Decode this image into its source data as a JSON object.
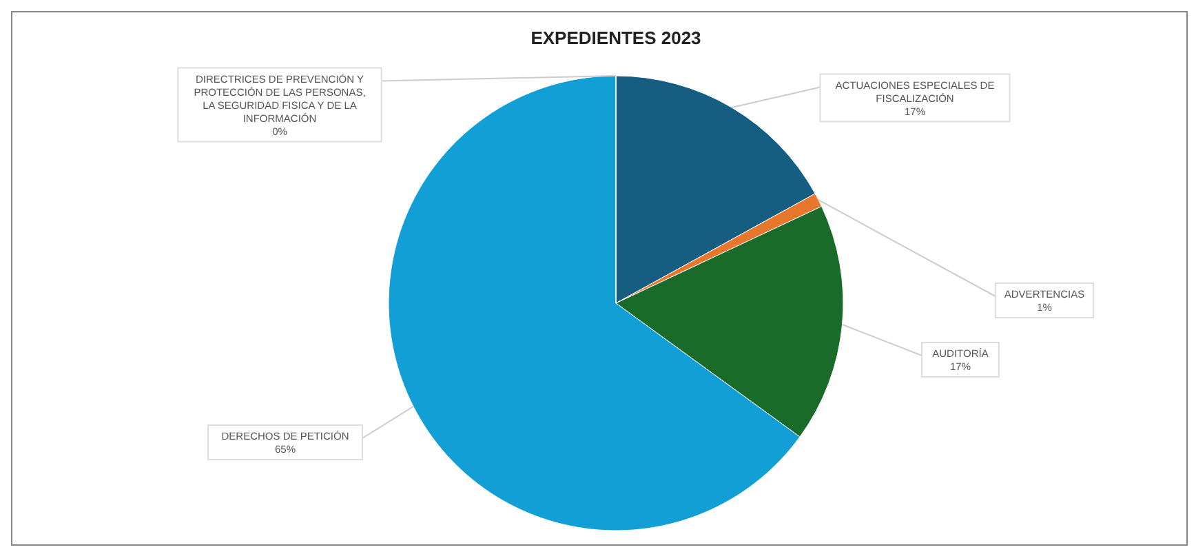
{
  "chart_data": {
    "type": "pie",
    "title": "EXPEDIENTES 2023",
    "categories": [
      "ACTUACIONES ESPECIALES DE FISCALIZACIÓN",
      "ADVERTENCIAS",
      "AUDITORÍA",
      "DERECHOS DE PETICIÓN",
      "DIRECTRICES DE PREVENCIÓN Y PROTECCIÓN DE LAS PERSONAS, LA SEGURIDAD FISICA Y DE LA INFORMACIÓN"
    ],
    "values": [
      17,
      1,
      17,
      65,
      0
    ],
    "colors": [
      "#155e82",
      "#e8772e",
      "#1a6b2a",
      "#129fd6",
      "#d6359a"
    ],
    "value_labels": [
      "17%",
      "1%",
      "17%",
      "65%",
      "0%"
    ]
  }
}
